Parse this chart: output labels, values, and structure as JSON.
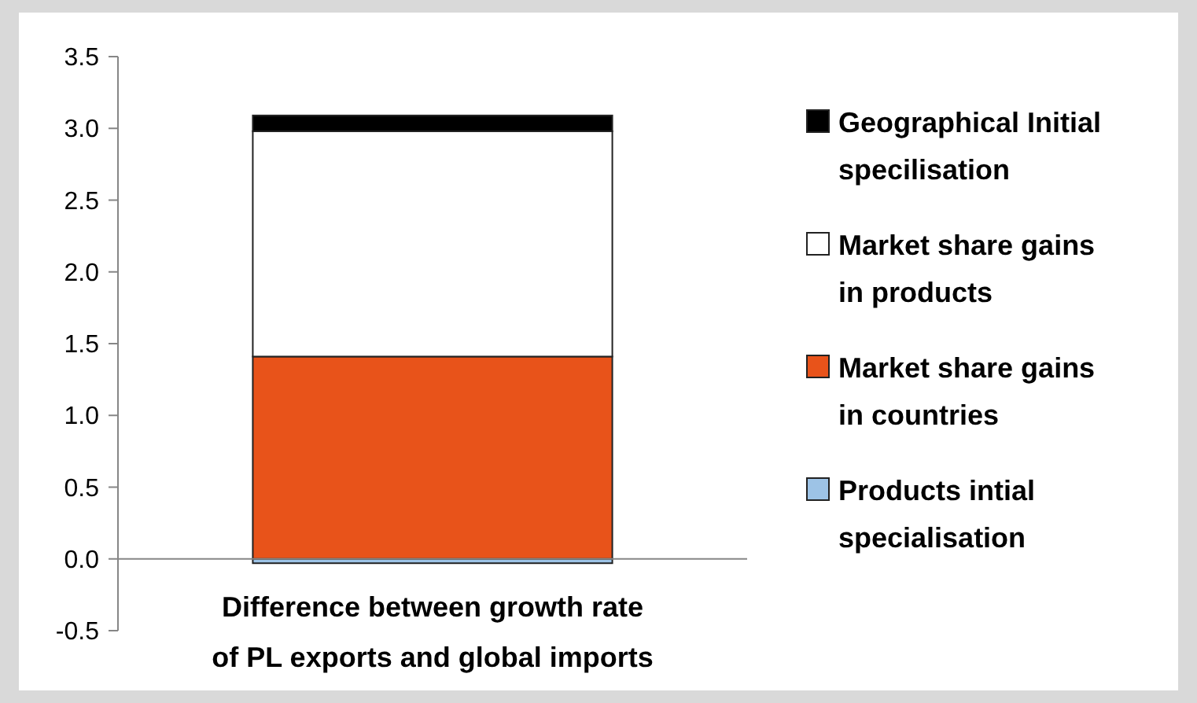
{
  "chart_data": {
    "type": "bar",
    "stacked": true,
    "categories": [
      "Difference between growth rate of PL exports and global imports"
    ],
    "series": [
      {
        "name": "Products intial specialisation",
        "color": "#9dc3e6",
        "values": [
          -0.03
        ]
      },
      {
        "name": "Market share gains in countries",
        "color": "#e8531a",
        "values": [
          1.41
        ]
      },
      {
        "name": "Market share gains in products",
        "color": "#ffffff",
        "values": [
          1.57
        ]
      },
      {
        "name": "Geographical Initial specilisation",
        "color": "#000000",
        "values": [
          0.11
        ]
      }
    ],
    "ylim": [
      -0.5,
      3.5
    ],
    "yticks": [
      {
        "value": -0.5,
        "label": "-0.5"
      },
      {
        "value": 0,
        "label": "0.0"
      },
      {
        "value": 0.5,
        "label": "0.5"
      },
      {
        "value": 1,
        "label": "1.0"
      },
      {
        "value": 1.5,
        "label": "1.5"
      },
      {
        "value": 2,
        "label": "2.0"
      },
      {
        "value": 2.5,
        "label": "2.5"
      },
      {
        "value": 3,
        "label": "3.0"
      },
      {
        "value": 3.5,
        "label": "3.5"
      }
    ],
    "legend": "right"
  }
}
